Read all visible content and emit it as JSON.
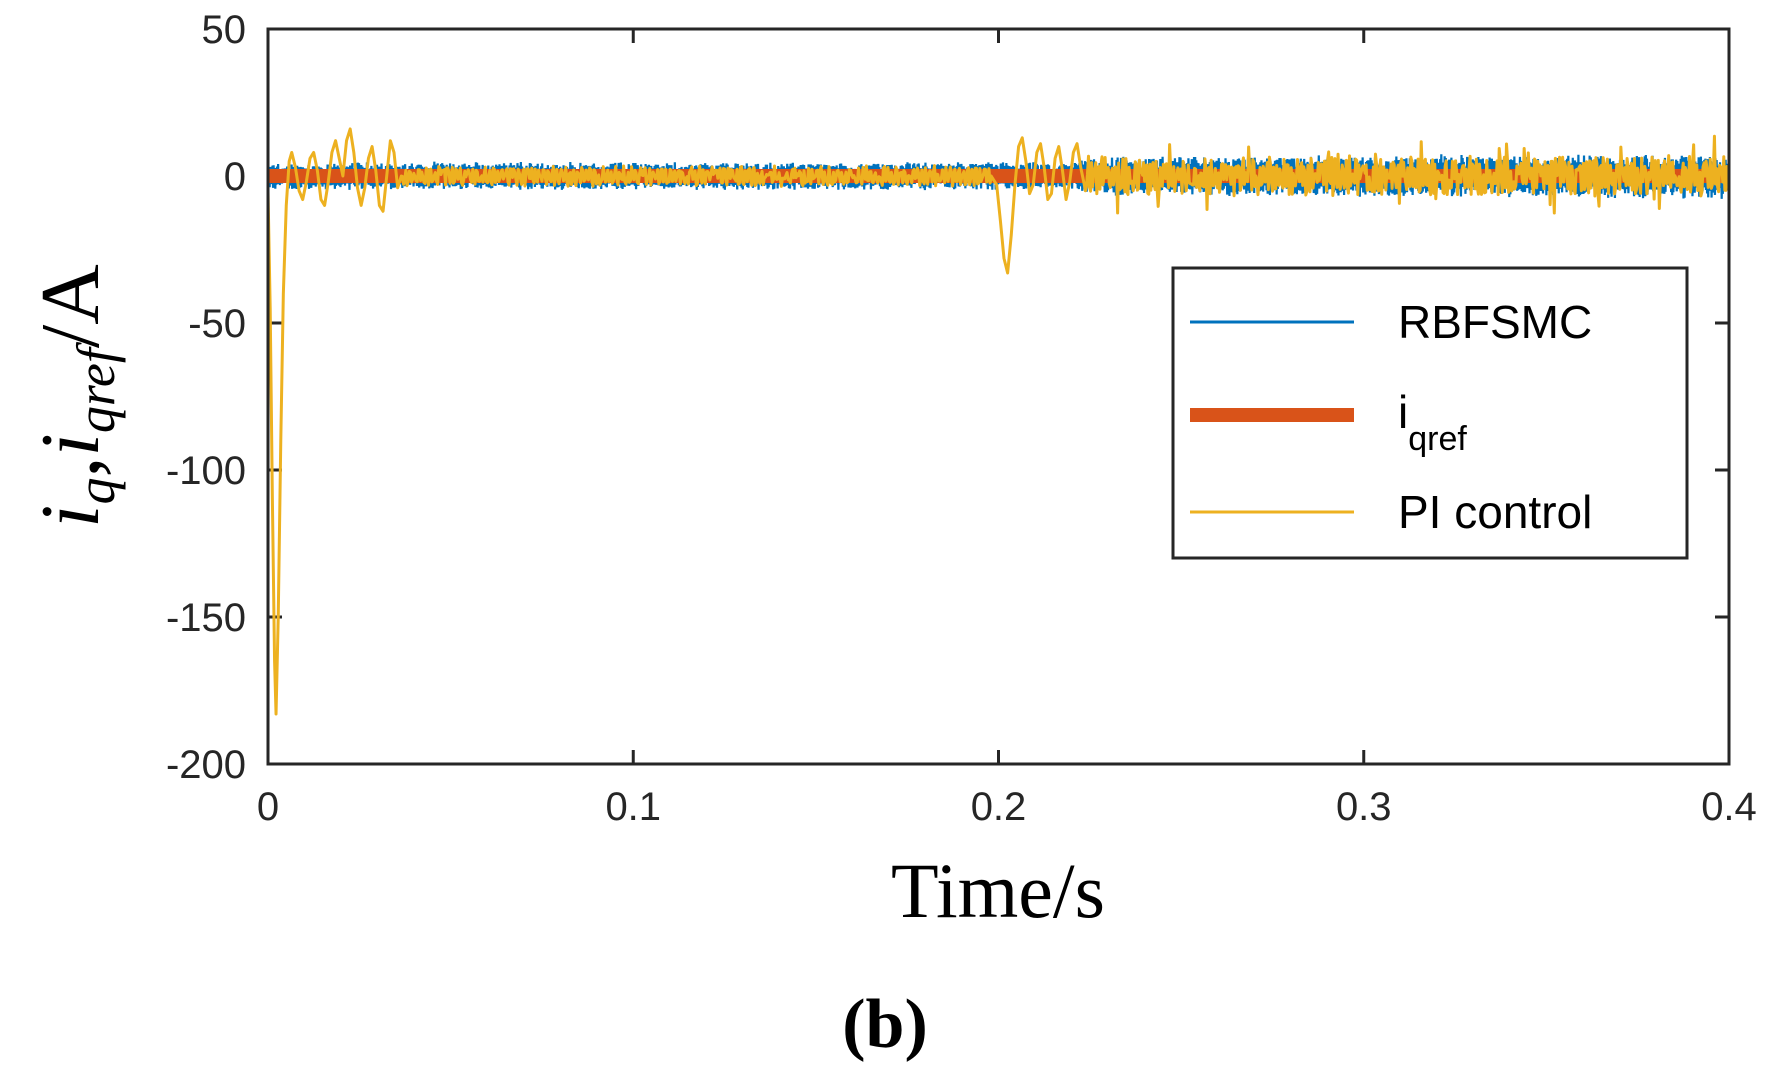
{
  "chart_data": {
    "type": "line",
    "title": "",
    "xlabel": "Time/s",
    "ylabel": {
      "main1": "i",
      "sub1": "q",
      "sep": ",",
      "main2": "i",
      "sub2": "qref",
      "unit": "/A"
    },
    "xlim": [
      0,
      0.4
    ],
    "ylim": [
      -200,
      50
    ],
    "xticks": [
      0,
      0.1,
      0.2,
      0.3,
      0.4
    ],
    "xtick_labels": [
      "0",
      "0.1",
      "0.2",
      "0.3",
      "0.4"
    ],
    "yticks": [
      50,
      0,
      -50,
      -100,
      -150,
      -200
    ],
    "ytick_labels": [
      "50",
      "0",
      "-50",
      "-100",
      "-150",
      "-200"
    ],
    "grid": false,
    "legend_position": "right",
    "series": [
      {
        "name": "RBFSMC",
        "color": "#0072BD",
        "style": "noise-band",
        "values": [
          [
            0,
            0
          ],
          [
            0.4,
            0
          ]
        ],
        "band_amplitude": [
          [
            0,
            5
          ],
          [
            0.22,
            5
          ],
          [
            0.225,
            7
          ],
          [
            0.4,
            8
          ]
        ]
      },
      {
        "name": "i",
        "name_sub": "qref",
        "color": "#D95319",
        "style": "thick",
        "values": [
          [
            0,
            0
          ],
          [
            0.4,
            0
          ]
        ]
      },
      {
        "name": "PI control",
        "color": "#EDB120",
        "style": "line",
        "values": [
          [
            0,
            -5
          ],
          [
            0.0006,
            -45
          ],
          [
            0.0012,
            -110
          ],
          [
            0.0018,
            -165
          ],
          [
            0.0022,
            -183
          ],
          [
            0.0028,
            -150
          ],
          [
            0.0035,
            -90
          ],
          [
            0.0042,
            -40
          ],
          [
            0.005,
            -10
          ],
          [
            0.0058,
            5
          ],
          [
            0.0065,
            8
          ],
          [
            0.0075,
            3
          ],
          [
            0.0085,
            -5
          ],
          [
            0.0095,
            -8
          ],
          [
            0.0105,
            -2
          ],
          [
            0.0115,
            6
          ],
          [
            0.0125,
            8
          ],
          [
            0.0135,
            2
          ],
          [
            0.0145,
            -8
          ],
          [
            0.0155,
            -10
          ],
          [
            0.0165,
            -2
          ],
          [
            0.0175,
            8
          ],
          [
            0.0185,
            12
          ],
          [
            0.0195,
            6
          ],
          [
            0.0205,
            0
          ],
          [
            0.0215,
            12
          ],
          [
            0.0225,
            16
          ],
          [
            0.0235,
            8
          ],
          [
            0.0245,
            -4
          ],
          [
            0.0255,
            -10
          ],
          [
            0.0265,
            -4
          ],
          [
            0.0275,
            6
          ],
          [
            0.0285,
            10
          ],
          [
            0.0295,
            2
          ],
          [
            0.0305,
            -10
          ],
          [
            0.0315,
            -12
          ],
          [
            0.0325,
            0
          ],
          [
            0.0335,
            12
          ],
          [
            0.0345,
            8
          ],
          [
            0.0355,
            -4
          ],
          [
            0.0365,
            0
          ],
          [
            0.198,
            0
          ],
          [
            0.1995,
            -3
          ],
          [
            0.2005,
            -15
          ],
          [
            0.2015,
            -28
          ],
          [
            0.2025,
            -33
          ],
          [
            0.2035,
            -20
          ],
          [
            0.2045,
            -3
          ],
          [
            0.2055,
            10
          ],
          [
            0.2065,
            13
          ],
          [
            0.2075,
            5
          ],
          [
            0.2085,
            -6
          ],
          [
            0.2095,
            -3
          ],
          [
            0.2105,
            8
          ],
          [
            0.2115,
            11
          ],
          [
            0.2125,
            3
          ],
          [
            0.2135,
            -8
          ],
          [
            0.2145,
            -6
          ],
          [
            0.2155,
            6
          ],
          [
            0.2165,
            10
          ],
          [
            0.2175,
            2
          ],
          [
            0.2185,
            -8
          ],
          [
            0.2195,
            -2
          ],
          [
            0.2205,
            8
          ],
          [
            0.2215,
            11
          ],
          [
            0.2225,
            3
          ],
          [
            0.2235,
            -3
          ]
        ],
        "noise_amplitude": [
          [
            0.0365,
            3
          ],
          [
            0.198,
            3
          ],
          [
            0.2235,
            6
          ],
          [
            0.4,
            6
          ]
        ]
      }
    ],
    "annotation": "(b)"
  }
}
